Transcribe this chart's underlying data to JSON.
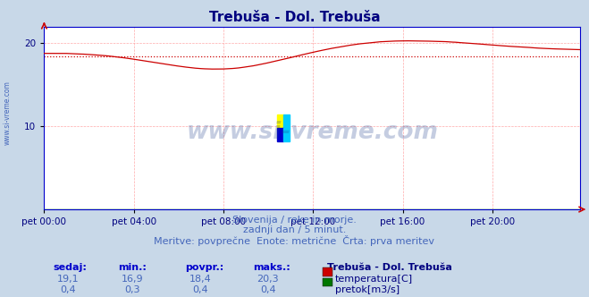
{
  "title": "Trebuša - Dol. Trebuša",
  "title_color": "#000080",
  "bg_color": "#c8d8e8",
  "plot_bg_color": "#ffffff",
  "grid_color": "#ffaaaa",
  "watermark_text": "www.si-vreme.com",
  "watermark_color": "#1a3a8a",
  "watermark_alpha": 0.25,
  "xlabel_ticks": [
    "pet 00:00",
    "pet 04:00",
    "pet 08:00",
    "pet 12:00",
    "pet 16:00",
    "pet 20:00"
  ],
  "xlabel_tick_positions": [
    0,
    48,
    96,
    144,
    192,
    240
  ],
  "tick_color": "#000080",
  "ylabel_temp": [
    10,
    20
  ],
  "ylim_temp": [
    0,
    22
  ],
  "xlim": [
    0,
    287
  ],
  "avg_line_value": 18.4,
  "avg_line_color": "#cc0000",
  "temp_line_color": "#cc0000",
  "flow_line_color": "#007700",
  "footer_lines": [
    "Slovenija / reke in morje.",
    "zadnji dan / 5 minut.",
    "Meritve: povprečne  Enote: metrične  Črta: prva meritev"
  ],
  "footer_color": "#4466bb",
  "footer_fontsize": 8,
  "table_headers": [
    "sedaj:",
    "min.:",
    "povpr.:",
    "maks.:"
  ],
  "table_header_color": "#0000cc",
  "table_vals_temp": [
    "19,1",
    "16,9",
    "18,4",
    "20,3"
  ],
  "table_vals_flow": [
    "0,4",
    "0,3",
    "0,4",
    "0,4"
  ],
  "legend_title": "Trebuša - Dol. Trebuša",
  "legend_temp_label": "temperatura[C]",
  "legend_flow_label": "pretok[m3/s]",
  "legend_color": "#000080",
  "spine_color": "#0000cc",
  "arrow_color": "#cc0000",
  "num_points": 288,
  "left_label": "www.si-vreme.com",
  "left_label_color": "#4466bb",
  "logo_colors": [
    "#ffff00",
    "#00ccff",
    "#0000cc",
    "#00ccff"
  ]
}
